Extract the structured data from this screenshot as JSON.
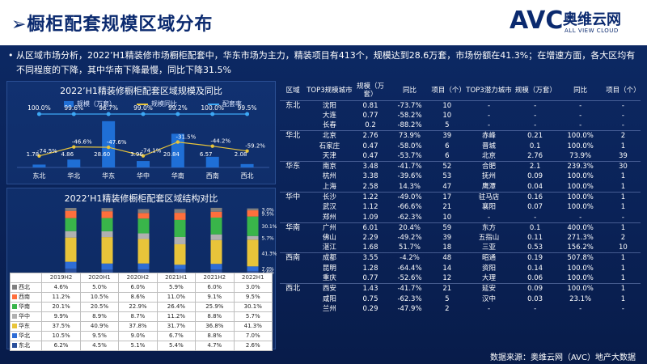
{
  "header": {
    "title": "➢橱柜配套规模区域分布",
    "logo_text": "AVC",
    "logo_cn": "奥维云网",
    "logo_en": "ALL VIEW CLOUD"
  },
  "intro": {
    "bullet": "•",
    "text": "从区域市场分析，2022’H1精装修市场橱柜配套中，华东市场为主力，精装项目有413个，规模达到28.6万套，市场份额在41.3%；在增速方面，各大区均有不同程度的下降，其中华南下降最慢，同比下降31.5%"
  },
  "source": "数据来源：奥维云网（AVC）地产大数据",
  "chart_data": [
    {
      "type": "bar",
      "title": "2022’H1精装修橱柜配套区域规模及同比",
      "categories": [
        "东北",
        "华北",
        "华东",
        "华中",
        "华南",
        "西南",
        "西北"
      ],
      "series": [
        {
          "name": "规模（万套）",
          "values": [
            1.78,
            4.86,
            28.6,
            3.96,
            20.84,
            6.57,
            2.08
          ]
        },
        {
          "name": "规模同比",
          "values": [
            -74.5,
            -46.6,
            -47.6,
            -74.1,
            -31.5,
            -44.2,
            -59.2
          ]
        },
        {
          "name": "配套率",
          "values": [
            100.0,
            99.6,
            96.7,
            99.0,
            99.2,
            100.0,
            99.5
          ]
        }
      ],
      "labels": {
        "scale": [
          "1.78",
          "4.86",
          "28.60",
          "3.96",
          "20.84",
          "6.57",
          "2.08"
        ],
        "yoy": [
          "-74.5%",
          "-46.6%",
          "-47.6%",
          "-74.1%",
          "-31.5%",
          "-44.2%",
          "-59.2%"
        ],
        "rate": [
          "100.0%",
          "99.6%",
          "96.7%",
          "99.0%",
          "99.2%",
          "100.0%",
          "99.5%"
        ]
      },
      "colors": {
        "bar": "#1f6fd6",
        "yoy": "#e8c43a",
        "rate": "#3da8f5"
      }
    },
    {
      "type": "bar",
      "stacked": true,
      "title": "2022’H1精装修橱柜配套区域结构对比",
      "categories": [
        "2019H2",
        "2020H1",
        "2020H2",
        "2021H1",
        "2021H2",
        "2022H1"
      ],
      "series": [
        {
          "name": "西北",
          "values": [
            4.6,
            5.0,
            6.0,
            5.9,
            6.0,
            3.0
          ],
          "color": "#7f7f7f"
        },
        {
          "name": "西南",
          "values": [
            11.2,
            10.5,
            8.6,
            11.0,
            9.1,
            9.5
          ],
          "color": "#ff6f3c"
        },
        {
          "name": "华南",
          "values": [
            20.1,
            20.5,
            22.9,
            26.4,
            25.9,
            30.1
          ],
          "color": "#39b54a"
        },
        {
          "name": "华中",
          "values": [
            9.9,
            8.9,
            8.7,
            11.2,
            8.8,
            5.7
          ],
          "color": "#b0b0b0"
        },
        {
          "name": "华东",
          "values": [
            37.5,
            40.9,
            37.8,
            31.7,
            36.8,
            41.3
          ],
          "color": "#e8c43a"
        },
        {
          "name": "华北",
          "values": [
            10.5,
            9.5,
            9.0,
            6.7,
            8.8,
            7.0
          ],
          "color": "#2f6dd6"
        },
        {
          "name": "东北",
          "values": [
            6.2,
            4.5,
            5.1,
            5.4,
            4.7,
            2.6
          ],
          "color": "#2a4f9b"
        }
      ],
      "table_values": [
        [
          "4.6%",
          "5.0%",
          "6.0%",
          "5.9%",
          "6.0%",
          "3.0%"
        ],
        [
          "11.2%",
          "10.5%",
          "8.6%",
          "11.0%",
          "9.1%",
          "9.5%"
        ],
        [
          "20.1%",
          "20.5%",
          "22.9%",
          "26.4%",
          "25.9%",
          "30.1%"
        ],
        [
          "9.9%",
          "8.9%",
          "8.7%",
          "11.2%",
          "8.8%",
          "5.7%"
        ],
        [
          "37.5%",
          "40.9%",
          "37.8%",
          "31.7%",
          "36.8%",
          "41.3%"
        ],
        [
          "10.5%",
          "9.5%",
          "9.0%",
          "6.7%",
          "8.8%",
          "7.0%"
        ],
        [
          "6.2%",
          "4.5%",
          "5.1%",
          "5.4%",
          "4.7%",
          "2.6%"
        ]
      ],
      "ylim": [
        0,
        100
      ]
    }
  ],
  "table": {
    "headers": [
      "区域",
      "TOP3规模城市",
      "规模（万套）",
      "同比",
      "项目（个）",
      "TOP3潜力城市",
      "规模（万套）",
      "同比",
      "项目（个）"
    ],
    "rows": [
      {
        "region": "东北",
        "city": "沈阳",
        "scale": "0.81",
        "yoy": "-73.7%",
        "proj": "10",
        "pcity": "-",
        "pscale": "-",
        "pyoy": "-",
        "pproj": "-",
        "sep": true
      },
      {
        "region": "",
        "city": "大连",
        "scale": "0.77",
        "yoy": "-58.2%",
        "proj": "10",
        "pcity": "-",
        "pscale": "-",
        "pyoy": "-",
        "pproj": "-"
      },
      {
        "region": "",
        "city": "长春",
        "scale": "0.2",
        "yoy": "-88.2%",
        "proj": "5",
        "pcity": "-",
        "pscale": "-",
        "pyoy": "-",
        "pproj": "-"
      },
      {
        "region": "华北",
        "city": "北京",
        "scale": "2.76",
        "yoy": "73.9%",
        "proj": "39",
        "pcity": "赤峰",
        "pscale": "0.21",
        "pyoy": "100.0%",
        "pproj": "2",
        "sep": true
      },
      {
        "region": "",
        "city": "石家庄",
        "scale": "0.47",
        "yoy": "-58.0%",
        "proj": "6",
        "pcity": "晋城",
        "pscale": "0.1",
        "pyoy": "100.0%",
        "pproj": "1"
      },
      {
        "region": "",
        "city": "天津",
        "scale": "0.47",
        "yoy": "-53.7%",
        "proj": "6",
        "pcity": "北京",
        "pscale": "2.76",
        "pyoy": "73.9%",
        "pproj": "39"
      },
      {
        "region": "华东",
        "city": "南京",
        "scale": "3.48",
        "yoy": "-41.7%",
        "proj": "52",
        "pcity": "合肥",
        "pscale": "2.1",
        "pyoy": "239.3%",
        "pproj": "30",
        "sep": true
      },
      {
        "region": "",
        "city": "杭州",
        "scale": "3.38",
        "yoy": "-39.6%",
        "proj": "53",
        "pcity": "抚州",
        "pscale": "0.09",
        "pyoy": "100.0%",
        "pproj": "1"
      },
      {
        "region": "",
        "city": "上海",
        "scale": "2.58",
        "yoy": "14.3%",
        "proj": "47",
        "pcity": "鹰潭",
        "pscale": "0.04",
        "pyoy": "100.0%",
        "pproj": "1"
      },
      {
        "region": "华中",
        "city": "长沙",
        "scale": "1.22",
        "yoy": "-49.0%",
        "proj": "17",
        "pcity": "驻马店",
        "pscale": "0.16",
        "pyoy": "100.0%",
        "pproj": "1",
        "sep": true
      },
      {
        "region": "",
        "city": "武汉",
        "scale": "1.12",
        "yoy": "-66.6%",
        "proj": "21",
        "pcity": "襄阳",
        "pscale": "0.07",
        "pyoy": "100.0%",
        "pproj": "1"
      },
      {
        "region": "",
        "city": "郑州",
        "scale": "1.09",
        "yoy": "-62.3%",
        "proj": "10",
        "pcity": "-",
        "pscale": "-",
        "pyoy": "-",
        "pproj": "-"
      },
      {
        "region": "华南",
        "city": "广州",
        "scale": "6.01",
        "yoy": "20.4%",
        "proj": "59",
        "pcity": "东方",
        "pscale": "0.1",
        "pyoy": "400.0%",
        "pproj": "1",
        "sep": true
      },
      {
        "region": "",
        "city": "佛山",
        "scale": "2.29",
        "yoy": "-49.2%",
        "proj": "39",
        "pcity": "五指山",
        "pscale": "0.11",
        "pyoy": "271.3%",
        "pproj": "2"
      },
      {
        "region": "",
        "city": "湛江",
        "scale": "1.68",
        "yoy": "51.7%",
        "proj": "18",
        "pcity": "三亚",
        "pscale": "0.53",
        "pyoy": "156.2%",
        "pproj": "10"
      },
      {
        "region": "西南",
        "city": "成都",
        "scale": "3.55",
        "yoy": "-4.2%",
        "proj": "48",
        "pcity": "昭通",
        "pscale": "0.19",
        "pyoy": "507.8%",
        "pproj": "1",
        "sep": true
      },
      {
        "region": "",
        "city": "昆明",
        "scale": "1.28",
        "yoy": "-64.4%",
        "proj": "14",
        "pcity": "资阳",
        "pscale": "0.14",
        "pyoy": "100.0%",
        "pproj": "1"
      },
      {
        "region": "",
        "city": "重庆",
        "scale": "0.77",
        "yoy": "-52.6%",
        "proj": "12",
        "pcity": "大理",
        "pscale": "0.06",
        "pyoy": "100.0%",
        "pproj": "1"
      },
      {
        "region": "西北",
        "city": "西安",
        "scale": "1.43",
        "yoy": "-41.7%",
        "proj": "21",
        "pcity": "延安",
        "pscale": "0.09",
        "pyoy": "100.0%",
        "pproj": "1",
        "sep": true
      },
      {
        "region": "",
        "city": "咸阳",
        "scale": "0.75",
        "yoy": "-62.3%",
        "proj": "5",
        "pcity": "汉中",
        "pscale": "0.03",
        "pyoy": "23.1%",
        "pproj": "1"
      },
      {
        "region": "",
        "city": "兰州",
        "scale": "0.29",
        "yoy": "-47.9%",
        "proj": "2",
        "pcity": "-",
        "pscale": "-",
        "pyoy": "-",
        "pproj": "-"
      }
    ]
  }
}
